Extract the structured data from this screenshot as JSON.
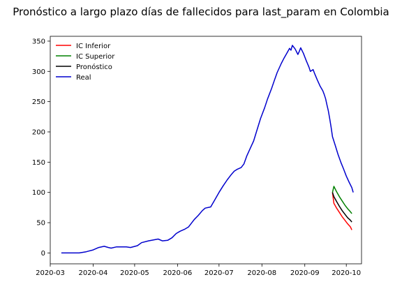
{
  "chart_data": {
    "type": "line",
    "title": "Pronóstico a largo plazo días de fallecidos para last_param en Colombia",
    "xlabel": "",
    "ylabel": "",
    "x_range": [
      "2020-03-01",
      "2020-10-12"
    ],
    "ylim": [
      -18,
      358
    ],
    "x_ticks": [
      "2020-03",
      "2020-04",
      "2020-05",
      "2020-06",
      "2020-07",
      "2020-08",
      "2020-09",
      "2020-10"
    ],
    "y_ticks": [
      0,
      50,
      100,
      150,
      200,
      250,
      300,
      350
    ],
    "grid": false,
    "legend_position": "upper-left",
    "series": [
      {
        "name": "IC Inferior",
        "color": "#ff0000",
        "points": [
          [
            "2020-09-21",
            100
          ],
          [
            "2020-09-22",
            82
          ],
          [
            "2020-09-24",
            74
          ],
          [
            "2020-09-26",
            67
          ],
          [
            "2020-09-28",
            60
          ],
          [
            "2020-09-30",
            54
          ],
          [
            "2020-10-02",
            48
          ],
          [
            "2020-10-04",
            43
          ],
          [
            "2020-10-05",
            38
          ]
        ]
      },
      {
        "name": "IC Superior",
        "color": "#008000",
        "points": [
          [
            "2020-09-21",
            100
          ],
          [
            "2020-09-22",
            110
          ],
          [
            "2020-09-24",
            101
          ],
          [
            "2020-09-26",
            93
          ],
          [
            "2020-09-28",
            86
          ],
          [
            "2020-09-30",
            79
          ],
          [
            "2020-10-02",
            73
          ],
          [
            "2020-10-04",
            68
          ],
          [
            "2020-10-05",
            65
          ]
        ]
      },
      {
        "name": "Pronóstico",
        "color": "#000000",
        "points": [
          [
            "2020-09-21",
            100
          ],
          [
            "2020-09-22",
            93
          ],
          [
            "2020-09-24",
            85
          ],
          [
            "2020-09-26",
            77
          ],
          [
            "2020-09-28",
            70
          ],
          [
            "2020-09-30",
            64
          ],
          [
            "2020-10-02",
            58
          ],
          [
            "2020-10-04",
            54
          ],
          [
            "2020-10-05",
            51
          ]
        ]
      },
      {
        "name": "Real",
        "color": "#0000cd",
        "points": [
          [
            "2020-03-09",
            0
          ],
          [
            "2020-03-22",
            0
          ],
          [
            "2020-03-27",
            2
          ],
          [
            "2020-04-01",
            5
          ],
          [
            "2020-04-05",
            9
          ],
          [
            "2020-04-09",
            11
          ],
          [
            "2020-04-12",
            9
          ],
          [
            "2020-04-14",
            8
          ],
          [
            "2020-04-18",
            10
          ],
          [
            "2020-04-25",
            10
          ],
          [
            "2020-04-28",
            9
          ],
          [
            "2020-05-03",
            12
          ],
          [
            "2020-05-06",
            17
          ],
          [
            "2020-05-11",
            20
          ],
          [
            "2020-05-16",
            22
          ],
          [
            "2020-05-18",
            23
          ],
          [
            "2020-05-21",
            20
          ],
          [
            "2020-05-25",
            21
          ],
          [
            "2020-05-28",
            25
          ],
          [
            "2020-05-31",
            32
          ],
          [
            "2020-06-03",
            36
          ],
          [
            "2020-06-06",
            39
          ],
          [
            "2020-06-09",
            43
          ],
          [
            "2020-06-13",
            55
          ],
          [
            "2020-06-16",
            62
          ],
          [
            "2020-06-19",
            70
          ],
          [
            "2020-06-21",
            74
          ],
          [
            "2020-06-25",
            76
          ],
          [
            "2020-06-28",
            88
          ],
          [
            "2020-07-01",
            100
          ],
          [
            "2020-07-04",
            111
          ],
          [
            "2020-07-07",
            121
          ],
          [
            "2020-07-10",
            130
          ],
          [
            "2020-07-12",
            135
          ],
          [
            "2020-07-14",
            138
          ],
          [
            "2020-07-17",
            141
          ],
          [
            "2020-07-19",
            147
          ],
          [
            "2020-07-21",
            160
          ],
          [
            "2020-07-24",
            175
          ],
          [
            "2020-07-26",
            185
          ],
          [
            "2020-07-28",
            200
          ],
          [
            "2020-07-31",
            222
          ],
          [
            "2020-08-03",
            240
          ],
          [
            "2020-08-05",
            254
          ],
          [
            "2020-08-08",
            272
          ],
          [
            "2020-08-10",
            285
          ],
          [
            "2020-08-12",
            298
          ],
          [
            "2020-08-15",
            313
          ],
          [
            "2020-08-17",
            322
          ],
          [
            "2020-08-19",
            330
          ],
          [
            "2020-08-21",
            338
          ],
          [
            "2020-08-22",
            335
          ],
          [
            "2020-08-23",
            343
          ],
          [
            "2020-08-25",
            337
          ],
          [
            "2020-08-27",
            328
          ],
          [
            "2020-08-28",
            333
          ],
          [
            "2020-08-29",
            339
          ],
          [
            "2020-08-31",
            330
          ],
          [
            "2020-09-02",
            318
          ],
          [
            "2020-09-04",
            307
          ],
          [
            "2020-09-05",
            300
          ],
          [
            "2020-09-07",
            303
          ],
          [
            "2020-09-08",
            297
          ],
          [
            "2020-09-10",
            286
          ],
          [
            "2020-09-12",
            276
          ],
          [
            "2020-09-14",
            268
          ],
          [
            "2020-09-15",
            262
          ],
          [
            "2020-09-16",
            255
          ],
          [
            "2020-09-17",
            245
          ],
          [
            "2020-09-18",
            235
          ],
          [
            "2020-09-19",
            222
          ],
          [
            "2020-09-20",
            208
          ],
          [
            "2020-09-21",
            192
          ],
          [
            "2020-09-23",
            178
          ],
          [
            "2020-09-25",
            163
          ],
          [
            "2020-09-27",
            150
          ],
          [
            "2020-09-29",
            139
          ],
          [
            "2020-10-01",
            127
          ],
          [
            "2020-10-03",
            117
          ],
          [
            "2020-10-05",
            108
          ],
          [
            "2020-10-06",
            100
          ]
        ]
      }
    ]
  }
}
